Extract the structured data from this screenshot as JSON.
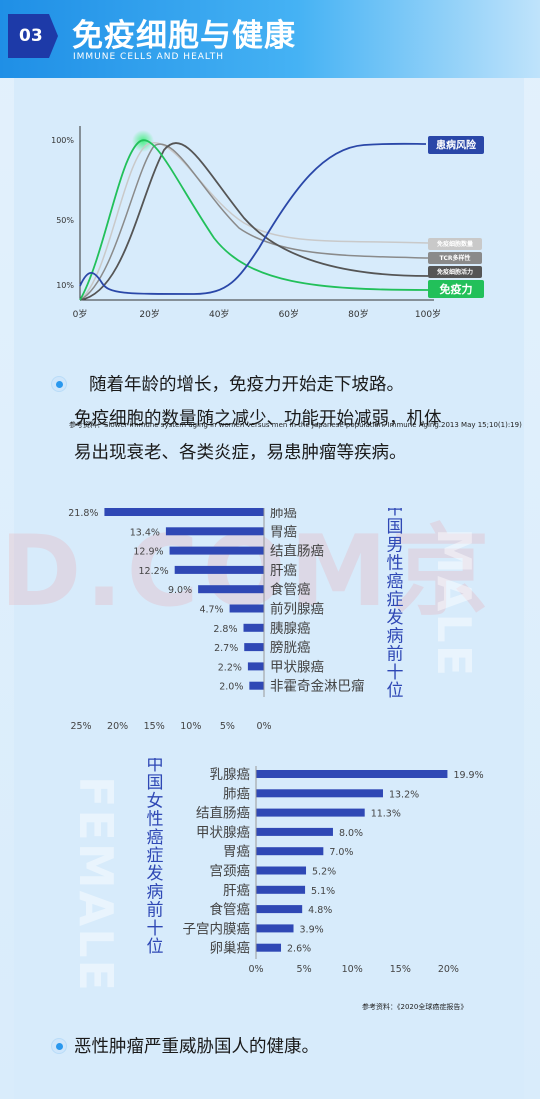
{
  "header": {
    "number": "03",
    "title": "免疫细胞与健康",
    "subtitle": "IMMUNE CELLS AND HEALTH"
  },
  "line_chart": {
    "y_ticks": [
      "100%",
      "50%",
      "10%"
    ],
    "x_ticks": [
      "0岁",
      "20岁",
      "40岁",
      "60岁",
      "80岁",
      "100岁"
    ],
    "labels": {
      "risk": "患病风险",
      "cell_count": "免疫细胞数量",
      "tcr": "TCR多样性",
      "activity": "免疫细胞活力",
      "immunity": "免疫力"
    },
    "colors": {
      "risk": "#2a47a8",
      "cell_count": "#c9c9c9",
      "tcr": "#8a8a8a",
      "activity": "#555555",
      "immunity": "#22c05a"
    },
    "reference": "参考资料：Slower immune system aging in women versus men in the Japanese population. Immune Aging.2013 May 15;10(1):19)"
  },
  "para1": {
    "line1": "随着年龄的增长，免疫力开始走下坡路。",
    "line2": "免疫细胞的数量随之减少、功能开始减弱，机体",
    "line3": "易出现衰老、各类炎症，易患肿瘤等疾病。"
  },
  "watermark": "D.COM京",
  "male_chart": {
    "title": "中国男性癌症发病前十位",
    "bg_word": "MALE",
    "items": [
      {
        "name": "肺癌",
        "value": 21.8,
        "label": "21.8%"
      },
      {
        "name": "胃癌",
        "value": 13.4,
        "label": "13.4%"
      },
      {
        "name": "结直肠癌",
        "value": 12.9,
        "label": "12.9%"
      },
      {
        "name": "肝癌",
        "value": 12.2,
        "label": "12.2%"
      },
      {
        "name": "食管癌",
        "value": 9.0,
        "label": "9.0%"
      },
      {
        "name": "前列腺癌",
        "value": 4.7,
        "label": "4.7%"
      },
      {
        "name": "胰腺癌",
        "value": 2.8,
        "label": "2.8%"
      },
      {
        "name": "膀胱癌",
        "value": 2.7,
        "label": "2.7%"
      },
      {
        "name": "甲状腺癌",
        "value": 2.2,
        "label": "2.2%"
      },
      {
        "name": "非霍奇金淋巴瘤",
        "value": 2.0,
        "label": "2.0%"
      }
    ],
    "axis_ticks": [
      "25%",
      "20%",
      "15%",
      "10%",
      "5%",
      "0%"
    ],
    "bar_color": "#2f48b5"
  },
  "female_chart": {
    "title": "中国女性癌症发病前十位",
    "bg_word": "FEMALE",
    "items": [
      {
        "name": "乳腺癌",
        "value": 19.9,
        "label": "19.9%"
      },
      {
        "name": "肺癌",
        "value": 13.2,
        "label": "13.2%"
      },
      {
        "name": "结直肠癌",
        "value": 11.3,
        "label": "11.3%"
      },
      {
        "name": "甲状腺癌",
        "value": 8.0,
        "label": "8.0%"
      },
      {
        "name": "胃癌",
        "value": 7.0,
        "label": "7.0%"
      },
      {
        "name": "宫颈癌",
        "value": 5.2,
        "label": "5.2%"
      },
      {
        "name": "肝癌",
        "value": 5.1,
        "label": "5.1%"
      },
      {
        "name": "食管癌",
        "value": 4.8,
        "label": "4.8%"
      },
      {
        "name": "子宫内膜癌",
        "value": 3.9,
        "label": "3.9%"
      },
      {
        "name": "卵巢癌",
        "value": 2.6,
        "label": "2.6%"
      }
    ],
    "axis_ticks": [
      "0%",
      "5%",
      "10%",
      "15%",
      "20%"
    ],
    "bar_color": "#2f48b5"
  },
  "reference2": "参考资料：《2020全球癌症报告》",
  "para2": "恶性肿瘤严重威胁国人的健康。"
}
